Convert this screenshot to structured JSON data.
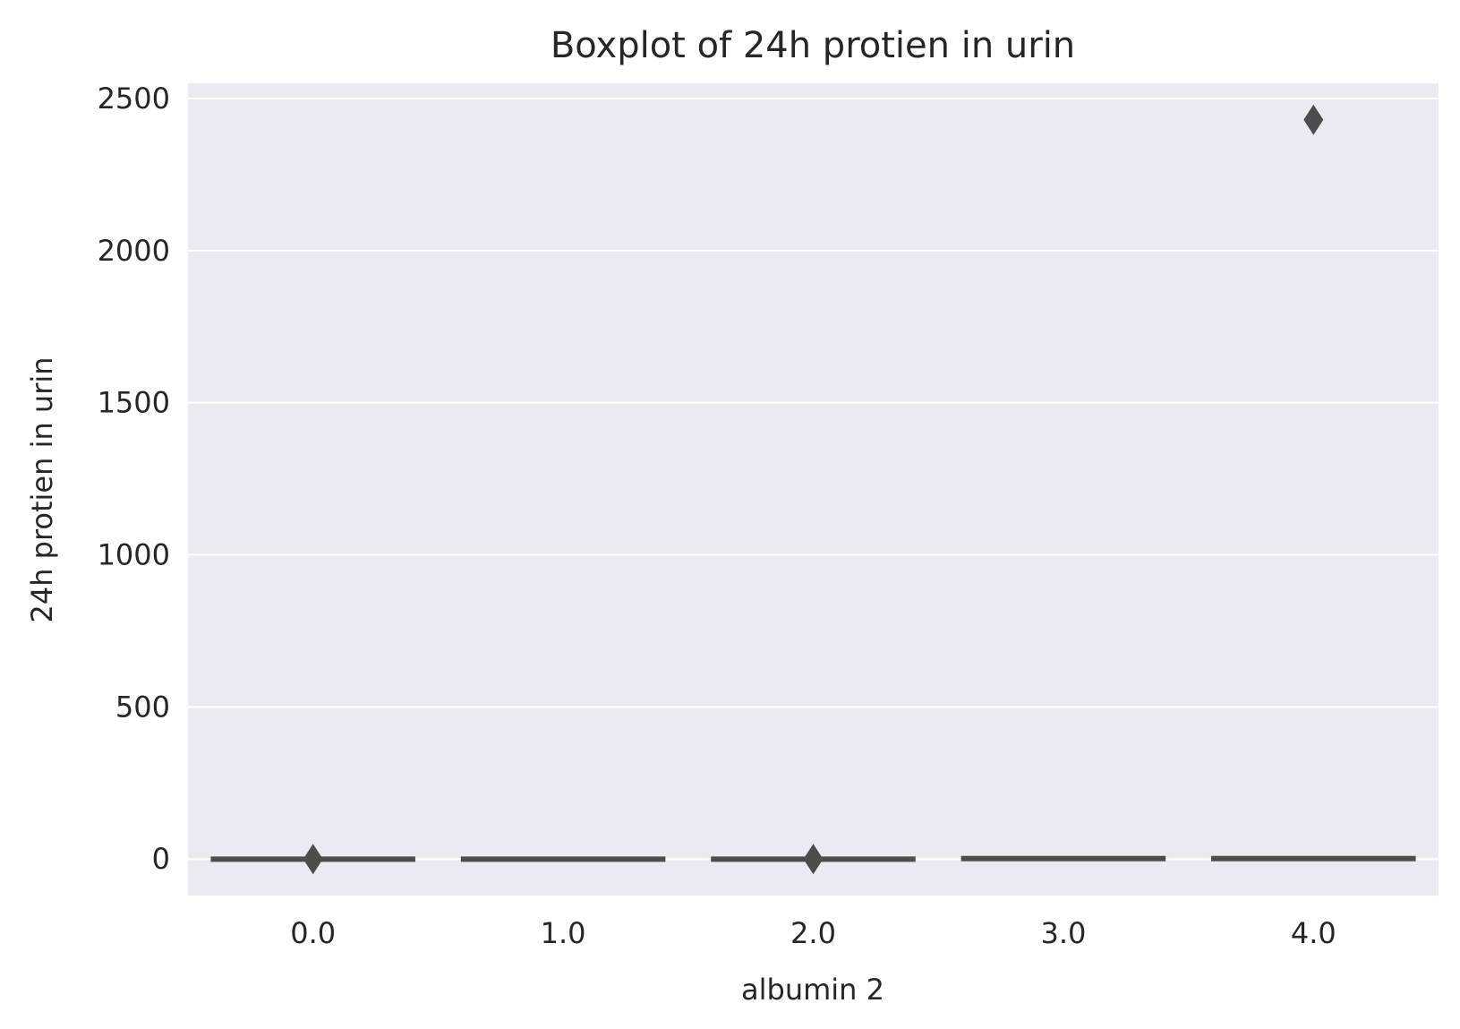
{
  "chart_data": {
    "type": "box",
    "title": "Boxplot of 24h protien in urin",
    "xlabel": "albumin 2",
    "ylabel": "24h protien in urin",
    "categories": [
      "0.0",
      "1.0",
      "2.0",
      "3.0",
      "4.0"
    ],
    "ylim": [
      -120,
      2550
    ],
    "yticks": [
      0,
      500,
      1000,
      1500,
      2000,
      2500
    ],
    "ytick_labels": [
      "0",
      "500",
      "1000",
      "1500",
      "2000",
      "2500"
    ],
    "grid": true,
    "boxes": [
      {
        "category": "0.0",
        "q1": 0,
        "median": 0,
        "q3": 1,
        "whisker_low": 0,
        "whisker_high": 1
      },
      {
        "category": "1.0",
        "q1": 0,
        "median": 0,
        "q3": 1,
        "whisker_low": 0,
        "whisker_high": 1
      },
      {
        "category": "2.0",
        "q1": 0,
        "median": 0,
        "q3": 1,
        "whisker_low": 0,
        "whisker_high": 1
      },
      {
        "category": "3.0",
        "q1": 1,
        "median": 2,
        "q3": 3,
        "whisker_low": 1,
        "whisker_high": 3
      },
      {
        "category": "4.0",
        "q1": 1,
        "median": 2,
        "q3": 3,
        "whisker_low": 1,
        "whisker_high": 3
      }
    ],
    "outliers": [
      {
        "category": "0.0",
        "value": 0
      },
      {
        "category": "2.0",
        "value": 0
      },
      {
        "category": "4.0",
        "value": 2430
      }
    ],
    "colors": {
      "plot_background": "#EAEAF2",
      "grid": "#FFFFFF",
      "box_line": "#4D4D4D",
      "text": "#262626"
    }
  }
}
